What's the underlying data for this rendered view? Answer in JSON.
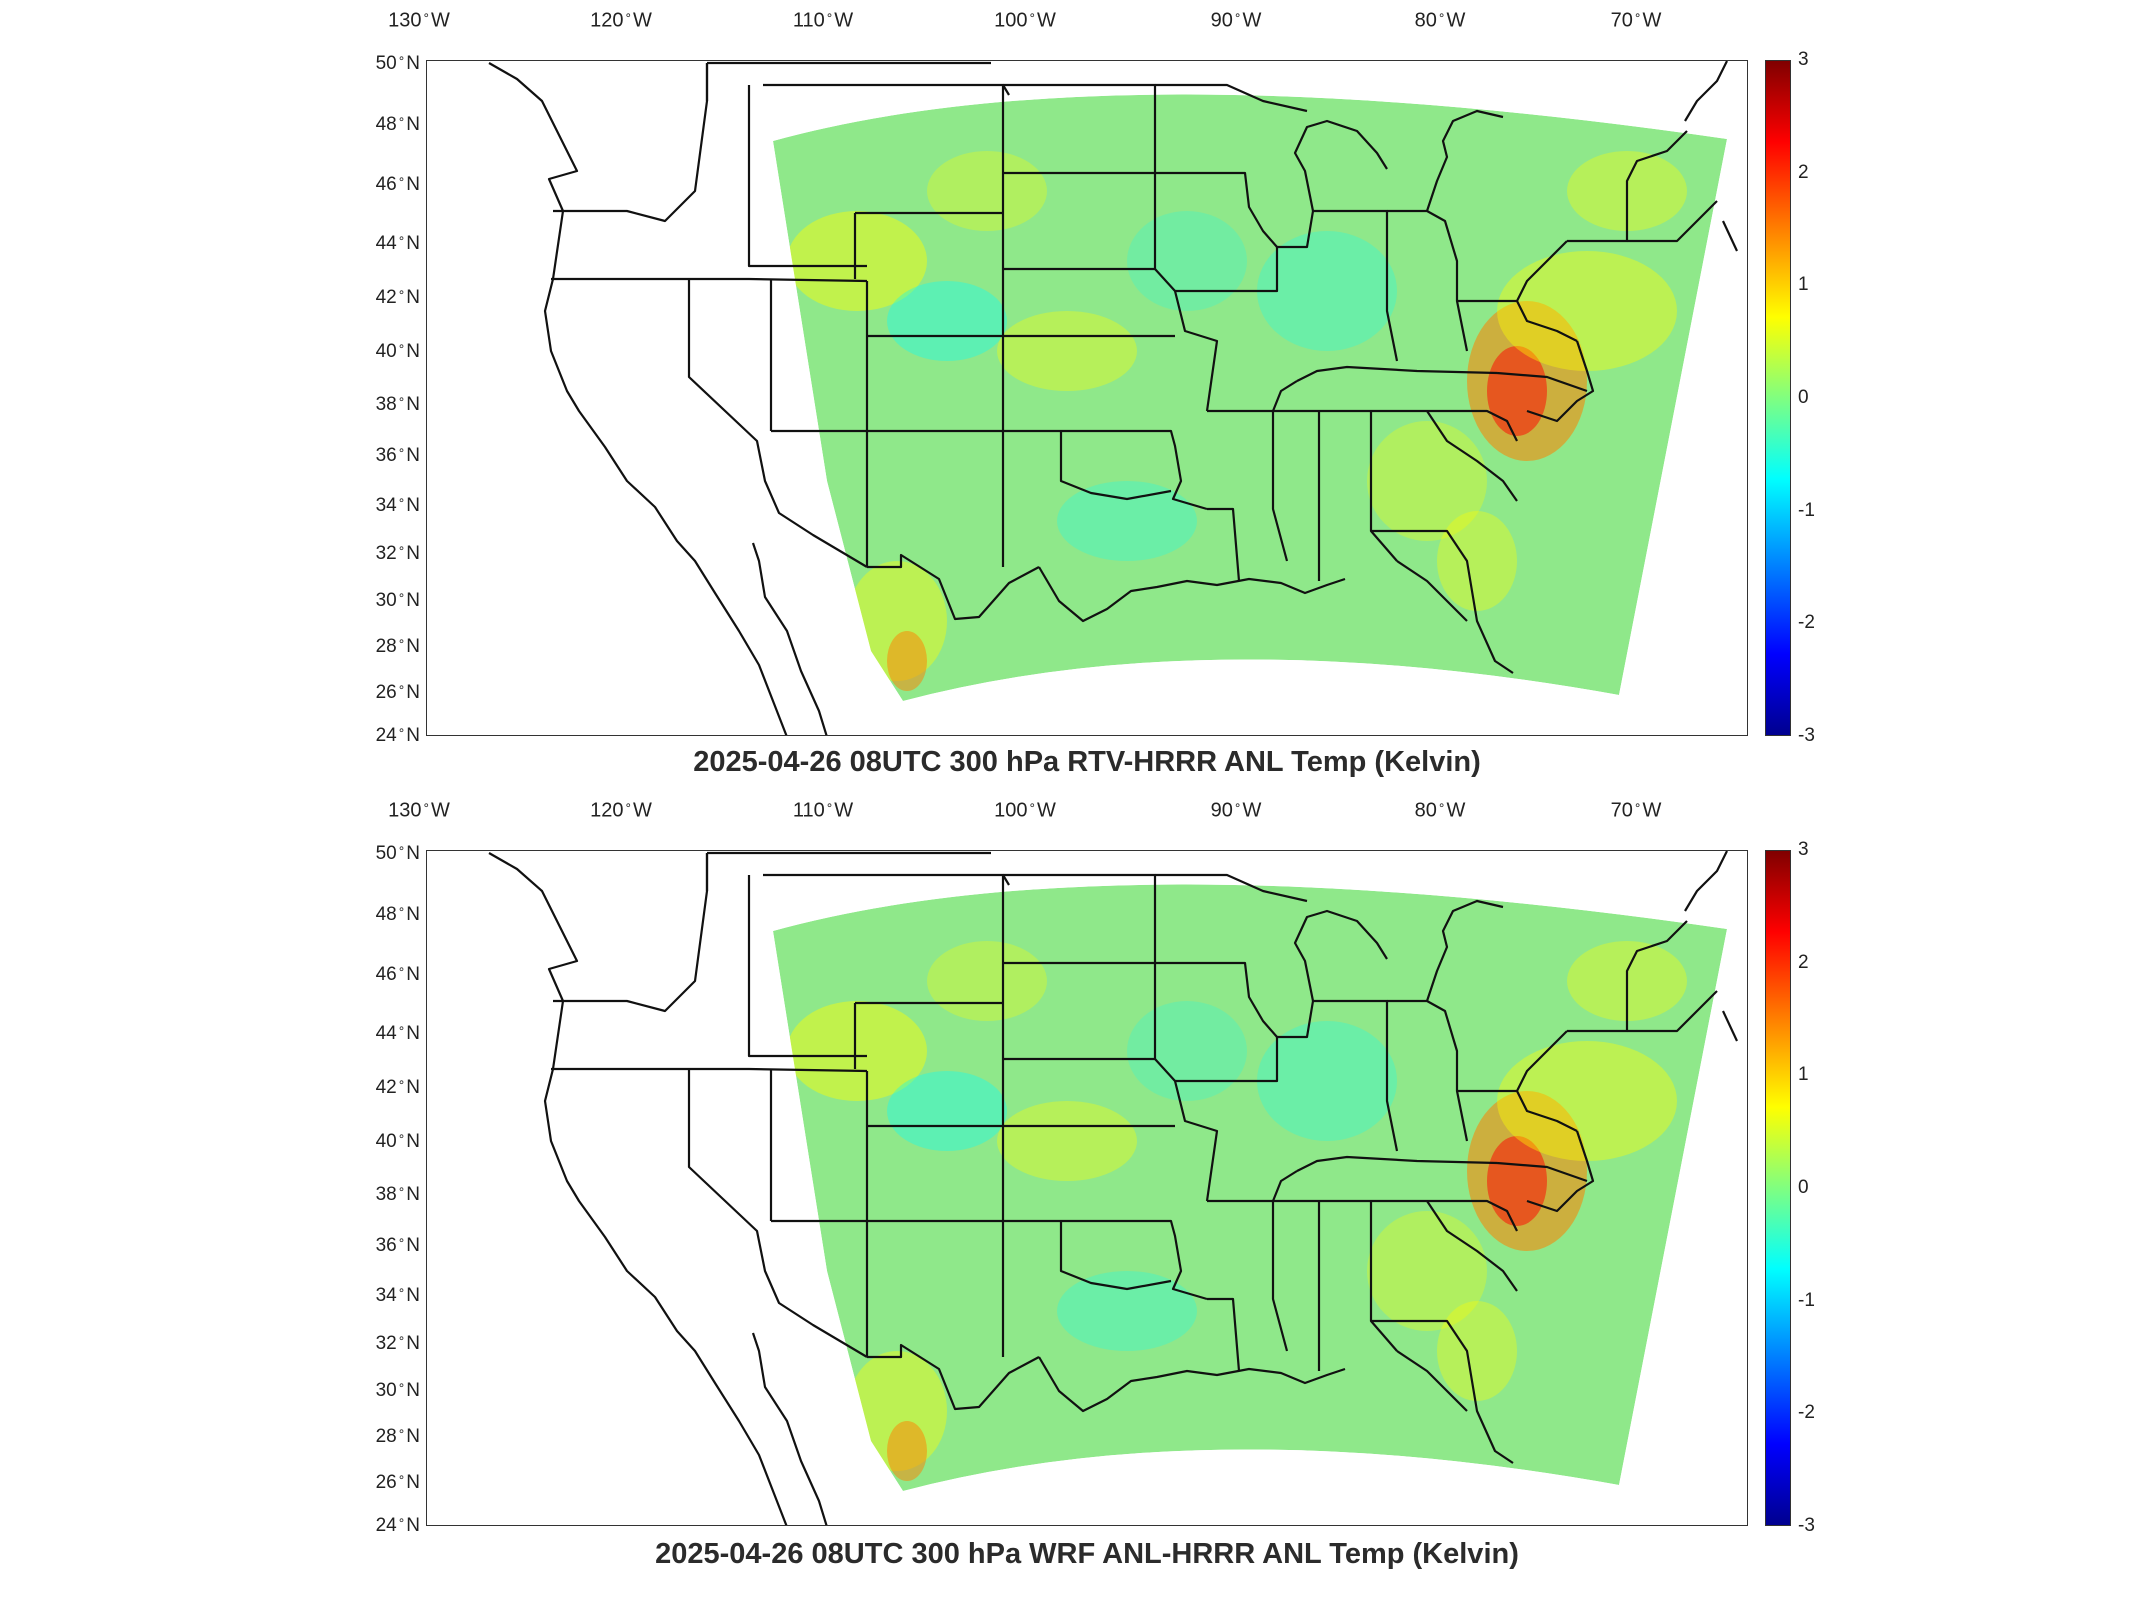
{
  "colors": {
    "colormap": [
      "#00008f",
      "#0000ff",
      "#0080ff",
      "#00ffff",
      "#80ff80",
      "#ffff00",
      "#ff8000",
      "#ff0000",
      "#800000"
    ],
    "field_base": "#8fe88a",
    "frame": "#333333"
  },
  "map": {
    "projection": "lambert-conformal",
    "lon_ticks": [
      "130",
      "120",
      "110",
      "100",
      "90",
      "80",
      "70"
    ],
    "lon_hemi": "W",
    "lat_ticks": [
      "50",
      "48",
      "46",
      "44",
      "42",
      "40",
      "38",
      "36",
      "34",
      "32",
      "30",
      "28",
      "26",
      "24"
    ],
    "lat_hemi": "N",
    "colorbar": {
      "min": -3,
      "max": 3,
      "ticks": [
        "3",
        "2",
        "1",
        "0",
        "-1",
        "-2",
        "-3"
      ]
    }
  },
  "panels": [
    {
      "title": "2025-04-26 08UTC 300 hPa RTV-HRRR ANL Temp (Kelvin)"
    },
    {
      "title": "2025-04-26 08UTC 300 hPa WRF ANL-HRRR ANL Temp (Kelvin)"
    }
  ]
}
